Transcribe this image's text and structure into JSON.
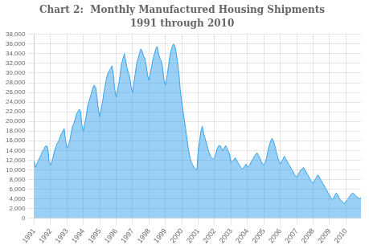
{
  "chart_data": {
    "type": "area",
    "title": "Chart 2:  Monthly Manufactured Housing Shipments",
    "subtitle": "1991 through 2010",
    "categories": [
      "1991",
      null,
      null,
      null,
      null,
      null,
      null,
      null,
      null,
      null,
      null,
      null,
      "1992",
      null,
      null,
      null,
      null,
      null,
      null,
      null,
      null,
      null,
      null,
      null,
      "1993",
      null,
      null,
      null,
      null,
      null,
      null,
      null,
      null,
      null,
      null,
      null,
      "1994",
      null,
      null,
      null,
      null,
      null,
      null,
      null,
      null,
      null,
      null,
      null,
      "1995",
      null,
      null,
      null,
      null,
      null,
      null,
      null,
      null,
      null,
      null,
      null,
      "1996",
      null,
      null,
      null,
      null,
      null,
      null,
      null,
      null,
      null,
      null,
      null,
      "1997",
      null,
      null,
      null,
      null,
      null,
      null,
      null,
      null,
      null,
      null,
      null,
      "1998",
      null,
      null,
      null,
      null,
      null,
      null,
      null,
      null,
      null,
      null,
      null,
      "1999",
      null,
      null,
      null,
      null,
      null,
      null,
      null,
      null,
      null,
      null,
      null,
      "2000",
      null,
      null,
      null,
      null,
      null,
      null,
      null,
      null,
      null,
      null,
      null,
      "2001",
      null,
      null,
      null,
      null,
      null,
      null,
      null,
      null,
      null,
      null,
      null,
      "2002",
      null,
      null,
      null,
      null,
      null,
      null,
      null,
      null,
      null,
      null,
      null,
      "2003",
      null,
      null,
      null,
      null,
      null,
      null,
      null,
      null,
      null,
      null,
      null,
      "2004",
      null,
      null,
      null,
      null,
      null,
      null,
      null,
      null,
      null,
      null,
      null,
      "2005",
      null,
      null,
      null,
      null,
      null,
      null,
      null,
      null,
      null,
      null,
      null,
      "2006",
      null,
      null,
      null,
      null,
      null,
      null,
      null,
      null,
      null,
      null,
      null,
      "2007",
      null,
      null,
      null,
      null,
      null,
      null,
      null,
      null,
      null,
      null,
      null,
      "2008",
      null,
      null,
      null,
      null,
      null,
      null,
      null,
      null,
      null,
      null,
      null,
      "2009",
      null,
      null,
      null,
      null,
      null,
      null,
      null,
      null,
      null,
      null,
      null,
      "2010",
      null,
      null,
      null,
      null,
      null,
      null,
      null,
      null,
      null,
      null,
      null
    ],
    "values": [
      11800,
      10500,
      11200,
      11800,
      12500,
      13000,
      13800,
      14200,
      14800,
      15000,
      14500,
      11500,
      11000,
      11800,
      12800,
      14000,
      14800,
      15500,
      16000,
      16800,
      17500,
      18000,
      18500,
      16000,
      14500,
      15000,
      16000,
      17500,
      19000,
      19500,
      20500,
      21500,
      22000,
      22500,
      22000,
      19000,
      18000,
      19500,
      21000,
      23000,
      24000,
      25000,
      26000,
      27000,
      27500,
      27000,
      25000,
      22500,
      21000,
      22500,
      24000,
      26000,
      27500,
      29000,
      30000,
      30500,
      31000,
      31500,
      29500,
      26500,
      25000,
      26500,
      28000,
      30000,
      32000,
      33000,
      34000,
      32500,
      31000,
      30000,
      29000,
      27000,
      26000,
      28000,
      30000,
      32000,
      33000,
      34000,
      35000,
      34500,
      33500,
      33000,
      31500,
      29500,
      28500,
      30000,
      31500,
      33000,
      34000,
      35000,
      35500,
      34000,
      33000,
      32500,
      31000,
      28500,
      27500,
      29000,
      31000,
      33000,
      34500,
      35500,
      36000,
      35500,
      34000,
      32000,
      29500,
      26000,
      24000,
      22000,
      20000,
      18000,
      16000,
      14000,
      12500,
      11500,
      11000,
      10500,
      10200,
      10000,
      14000,
      16000,
      18000,
      19000,
      17500,
      16500,
      15500,
      14500,
      13500,
      12800,
      12500,
      12200,
      12500,
      13500,
      14500,
      15000,
      15000,
      14500,
      14000,
      14500,
      15000,
      14500,
      13800,
      13200,
      11500,
      11800,
      12000,
      12500,
      12000,
      11500,
      11000,
      10500,
      10200,
      10300,
      10800,
      11200,
      10500,
      10800,
      11200,
      11800,
      12200,
      12800,
      13200,
      13500,
      13000,
      12500,
      11800,
      11200,
      11000,
      11500,
      12500,
      14000,
      15000,
      16000,
      16500,
      16000,
      15000,
      13800,
      12800,
      11800,
      11200,
      11800,
      12200,
      12800,
      12200,
      11800,
      11200,
      10800,
      10200,
      9800,
      9200,
      8800,
      8500,
      9000,
      9500,
      10000,
      10200,
      10500,
      10000,
      9500,
      9000,
      8500,
      8000,
      7500,
      7200,
      7800,
      8200,
      8800,
      8800,
      8200,
      7800,
      7200,
      6800,
      6200,
      5800,
      5200,
      4800,
      4200,
      3800,
      4200,
      4800,
      5200,
      4800,
      4200,
      3800,
      3500,
      3200,
      3000,
      3500,
      3800,
      4200,
      4600,
      5000,
      5200,
      5000,
      4600,
      4400,
      4200,
      4000,
      4200
    ],
    "ylim": [
      0,
      38000
    ],
    "yticks": [
      0,
      {
        "value": 2000,
        "label": "2,000"
      },
      {
        "value": 4000,
        "label": "4,000"
      },
      {
        "value": 6000,
        "label": "6,000"
      },
      {
        "value": 8000,
        "label": "8,000"
      },
      {
        "value": 10000,
        "label": "10,000"
      },
      {
        "value": 12000,
        "label": "12,000"
      },
      {
        "value": 14000,
        "label": "14,000"
      },
      {
        "value": 16000,
        "label": "16,000"
      },
      {
        "value": 18000,
        "label": "18,000"
      },
      {
        "value": 20000,
        "label": "20,000"
      },
      {
        "value": 22000,
        "label": "22,000"
      },
      {
        "value": 24000,
        "label": "24,000"
      },
      {
        "value": 26000,
        "label": "26,000"
      },
      {
        "value": 28000,
        "label": "28,000"
      },
      {
        "value": 30000,
        "label": "30,000"
      },
      {
        "value": 32000,
        "label": "32,000"
      },
      {
        "value": 34000,
        "label": "34,000"
      },
      {
        "value": 36000,
        "label": "36,000"
      },
      {
        "value": 38000,
        "label": "38,000"
      }
    ],
    "grid": true
  }
}
